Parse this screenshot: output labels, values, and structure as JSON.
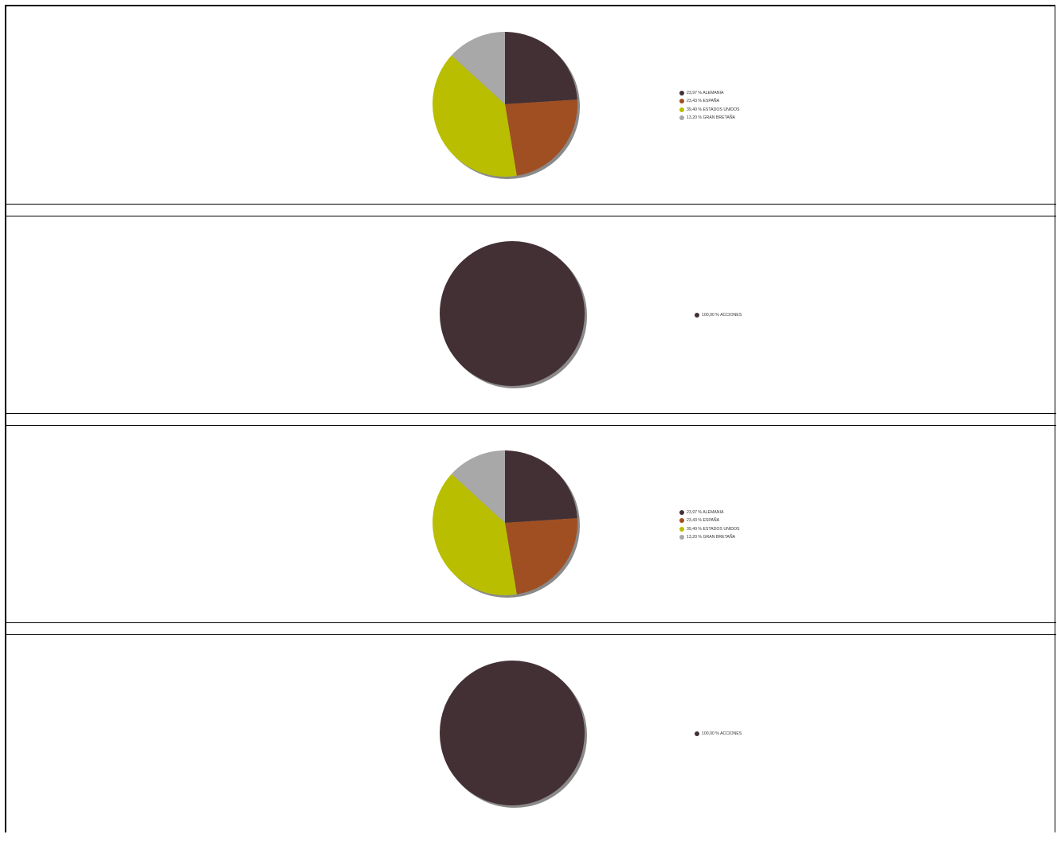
{
  "colors": {
    "ALEMANIA": "#433035",
    "ESPAÑA": "#a04f22",
    "ESTADOS UNIDOS": "#b9bf00",
    "GRAN BRETAÑA": "#a8a8a8",
    "ACCIONES": "#433035",
    "shadow": "#8a8a8a"
  },
  "chart_data": [
    {
      "type": "pie",
      "slices": [
        {
          "label": "23,97 % ALEMANIA",
          "category": "ALEMANIA",
          "value": 23.97
        },
        {
          "label": "23,43 % ESPAÑA",
          "category": "ESPAÑA",
          "value": 23.43
        },
        {
          "label": "39,40 % ESTADOS UNIDOS",
          "category": "ESTADOS UNIDOS",
          "value": 39.4
        },
        {
          "label": "13,20 % GRAN BRETAÑA",
          "category": "GRAN BRETAÑA",
          "value": 13.2
        }
      ],
      "legend": "right"
    },
    {
      "type": "pie",
      "slices": [
        {
          "label": "100,00 % ACCIONES",
          "category": "ACCIONES",
          "value": 100.0
        }
      ],
      "legend": "right"
    },
    {
      "type": "pie",
      "slices": [
        {
          "label": "23,97 % ALEMANIA",
          "category": "ALEMANIA",
          "value": 23.97
        },
        {
          "label": "23,43 % ESPAÑA",
          "category": "ESPAÑA",
          "value": 23.43
        },
        {
          "label": "39,40 % ESTADOS UNIDOS",
          "category": "ESTADOS UNIDOS",
          "value": 39.4
        },
        {
          "label": "13,20 % GRAN BRETAÑA",
          "category": "GRAN BRETAÑA",
          "value": 13.2
        }
      ],
      "legend": "right"
    },
    {
      "type": "pie",
      "slices": [
        {
          "label": "100,00 % ACCIONES",
          "category": "ACCIONES",
          "value": 100.0
        }
      ],
      "legend": "right"
    }
  ]
}
